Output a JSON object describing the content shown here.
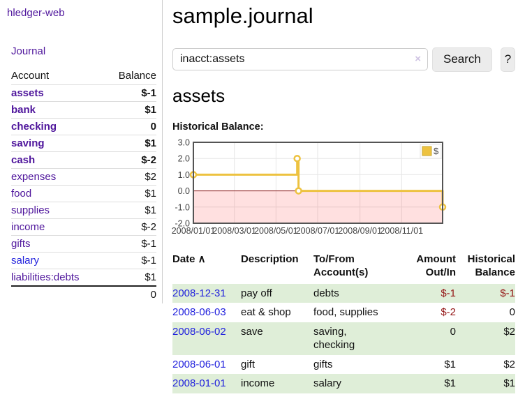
{
  "sidebar": {
    "app_title": "hledger-web",
    "journal_link": "Journal",
    "accounts": {
      "headers": {
        "account": "Account",
        "balance": "Balance"
      },
      "rows": [
        {
          "name": "assets",
          "depth": 1,
          "in_focus": true,
          "link_tone": "visited",
          "balance": "$-1",
          "balance_tone": "neg"
        },
        {
          "name": "bank",
          "depth": 2,
          "in_focus": true,
          "link_tone": "visited",
          "balance": "$1",
          "balance_tone": "pos"
        },
        {
          "name": "checking",
          "depth": 3,
          "in_focus": true,
          "link_tone": "visited",
          "balance": "0",
          "balance_tone": "pos"
        },
        {
          "name": "saving",
          "depth": 3,
          "in_focus": true,
          "link_tone": "visited",
          "balance": "$1",
          "balance_tone": "pos"
        },
        {
          "name": "cash",
          "depth": 2,
          "in_focus": true,
          "link_tone": "visited",
          "balance": "$-2",
          "balance_tone": "neg"
        },
        {
          "name": "expenses",
          "depth": 1,
          "in_focus": false,
          "link_tone": "visited",
          "balance": "$2",
          "balance_tone": "pos"
        },
        {
          "name": "food",
          "depth": 2,
          "in_focus": false,
          "link_tone": "visited",
          "balance": "$1",
          "balance_tone": "pos"
        },
        {
          "name": "supplies",
          "depth": 2,
          "in_focus": false,
          "link_tone": "visited",
          "balance": "$1",
          "balance_tone": "pos"
        },
        {
          "name": "income",
          "depth": 1,
          "in_focus": false,
          "link_tone": "visited",
          "balance": "$-2",
          "balance_tone": "negmuted"
        },
        {
          "name": "gifts",
          "depth": 2,
          "in_focus": false,
          "link_tone": "visited",
          "balance": "$-1",
          "balance_tone": "negmuted"
        },
        {
          "name": "salary",
          "depth": 2,
          "in_focus": false,
          "link_tone": "unvisited",
          "balance": "$-1",
          "balance_tone": "negmuted"
        },
        {
          "name": "liabilities:debts",
          "depth": 1,
          "in_focus": false,
          "link_tone": "visited",
          "balance": "$1",
          "balance_tone": "pos"
        }
      ],
      "total": "0"
    }
  },
  "main": {
    "title": "sample.journal",
    "search": {
      "value": "inacct:assets",
      "clear_icon": "×",
      "search_label": "Search",
      "help_label": "?"
    },
    "account_heading": "assets",
    "chart_label": "Historical Balance:"
  },
  "chart_data": {
    "type": "line",
    "step": true,
    "title": "Historical Balance",
    "xlabel": "",
    "ylabel": "",
    "series": [
      {
        "name": "$",
        "color": "#EDC240",
        "points": [
          [
            "2008-01-01",
            1
          ],
          [
            "2008-06-01",
            2
          ],
          [
            "2008-06-03",
            0
          ],
          [
            "2008-12-31",
            -1
          ]
        ]
      }
    ],
    "xlim": [
      "2008-01-01",
      "2008-12-31"
    ],
    "ylim": [
      -2,
      3
    ],
    "yticks": [
      {
        "v": 3,
        "label": "3.0"
      },
      {
        "v": 2,
        "label": "2.0"
      },
      {
        "v": 1,
        "label": "1.0"
      },
      {
        "v": 0,
        "label": "0.0"
      },
      {
        "v": -1,
        "label": "-1.0"
      },
      {
        "v": -2,
        "label": "-2.0"
      }
    ],
    "xticks": [
      {
        "v": "2008-01-01",
        "label": "2008/01/01"
      },
      {
        "v": "2008-03-01",
        "label": "2008/03/01"
      },
      {
        "v": "2008-05-01",
        "label": "2008/05/01"
      },
      {
        "v": "2008-07-01",
        "label": "2008/07/01"
      },
      {
        "v": "2008-09-01",
        "label": "2008/09/01"
      },
      {
        "v": "2008-11-01",
        "label": "2008/11/01"
      }
    ],
    "legend": {
      "label": "$",
      "position": "top-right"
    },
    "grid": true,
    "negative_region_color": "rgba(255,0,0,0.12)",
    "zero_line_color": "#8b1a1a",
    "axis_text_color": "#444444",
    "border_color": "#545454",
    "grid_color": "#e6e6e6"
  },
  "register": {
    "headers": [
      {
        "l1": "Date",
        "l2": "",
        "sort": "∧",
        "align": "left"
      },
      {
        "l1": "Description",
        "l2": "",
        "sort": "",
        "align": "left"
      },
      {
        "l1": "To/From",
        "l2": "Account(s)",
        "sort": "",
        "align": "left"
      },
      {
        "l1": "Amount",
        "l2": "Out/In",
        "sort": "",
        "align": "right"
      },
      {
        "l1": "Historical",
        "l2": "Balance",
        "sort": "",
        "align": "right"
      }
    ],
    "rows": [
      {
        "date": "2008-12-31",
        "description": "pay off",
        "accounts": "debts",
        "amount": "$-1",
        "amount_tone": "neg",
        "balance": "$-1",
        "balance_tone": "neg"
      },
      {
        "date": "2008-06-03",
        "description": "eat & shop",
        "accounts": "food, supplies",
        "amount": "$-2",
        "amount_tone": "neg",
        "balance": "0",
        "balance_tone": "pos"
      },
      {
        "date": "2008-06-02",
        "description": "save",
        "accounts": "saving,\nchecking",
        "amount": "0",
        "amount_tone": "pos",
        "balance": "$2",
        "balance_tone": "pos"
      },
      {
        "date": "2008-06-01",
        "description": "gift",
        "accounts": "gifts",
        "amount": "$1",
        "amount_tone": "pos",
        "balance": "$2",
        "balance_tone": "pos"
      },
      {
        "date": "2008-01-01",
        "description": "income",
        "accounts": "salary",
        "amount": "$1",
        "amount_tone": "pos",
        "balance": "$1",
        "balance_tone": "pos"
      }
    ]
  }
}
